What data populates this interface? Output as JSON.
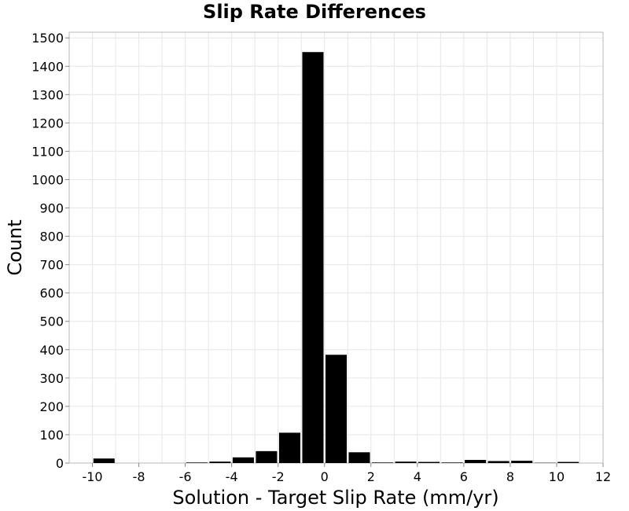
{
  "chart_data": {
    "type": "bar",
    "title": "Slip Rate Differences",
    "xlabel": "Solution - Target Slip Rate (mm/yr)",
    "ylabel": "Count",
    "xlim": [
      -11,
      12
    ],
    "ylim": [
      0,
      1520
    ],
    "xticks": [
      -10,
      -8,
      -6,
      -4,
      -2,
      0,
      2,
      4,
      6,
      8,
      10,
      12
    ],
    "yticks": [
      0,
      100,
      200,
      300,
      400,
      500,
      600,
      700,
      800,
      900,
      1000,
      1100,
      1200,
      1300,
      1400,
      1500
    ],
    "bin_width": 1,
    "grid": true,
    "bar_color": "#000000",
    "bins": [
      {
        "x": -9.5,
        "value": 16
      },
      {
        "x": -8.5,
        "value": 0
      },
      {
        "x": -7.5,
        "value": 0
      },
      {
        "x": -6.5,
        "value": 0
      },
      {
        "x": -5.5,
        "value": 2
      },
      {
        "x": -4.5,
        "value": 5
      },
      {
        "x": -3.5,
        "value": 20
      },
      {
        "x": -2.5,
        "value": 42
      },
      {
        "x": -1.5,
        "value": 107
      },
      {
        "x": -0.5,
        "value": 1450
      },
      {
        "x": 0.5,
        "value": 382
      },
      {
        "x": 1.5,
        "value": 38
      },
      {
        "x": 2.5,
        "value": 2
      },
      {
        "x": 3.5,
        "value": 5
      },
      {
        "x": 4.5,
        "value": 4
      },
      {
        "x": 5.5,
        "value": 2
      },
      {
        "x": 6.5,
        "value": 11
      },
      {
        "x": 7.5,
        "value": 7
      },
      {
        "x": 8.5,
        "value": 8
      },
      {
        "x": 9.5,
        "value": 1
      },
      {
        "x": 10.5,
        "value": 4
      }
    ]
  }
}
